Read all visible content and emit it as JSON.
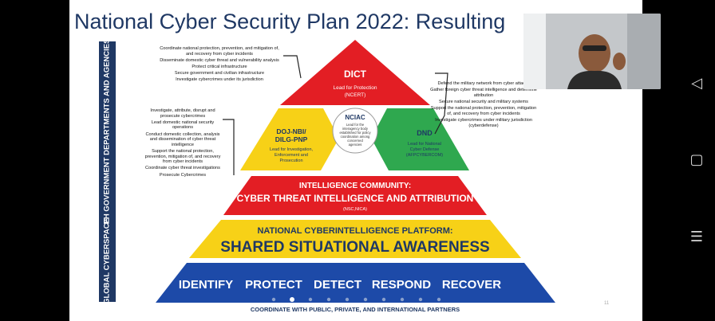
{
  "slide": {
    "title": "National Cyber Security Plan 2022: Resulting",
    "sidebar_top": "PH GOVERNMENT DEPARTMENTS AND AGENCIES",
    "sidebar_bottom": "GLOBAL CYBERSPACE",
    "dict": {
      "name": "DICT",
      "sub1": "Lead for Protection",
      "sub2": "(NCERT)"
    },
    "dojnbi": {
      "name1": "DOJ-NBI/",
      "name2": "DILG-PNP",
      "sub1": "Lead for Investigation,",
      "sub2": "Enforcement and",
      "sub3": "Prosecution"
    },
    "nciac": {
      "name": "NCIAC",
      "d1": "Lead for the",
      "d2": "interagency body",
      "d3": "established for policy",
      "d4": "coordination among",
      "d5": "concerned",
      "d6": "agencies"
    },
    "dnd": {
      "name": "DND",
      "sub1": "Lead for National",
      "sub2": "Cyber Defense",
      "sub3": "(AFPCYBERCOM)"
    },
    "intel": {
      "line1": "INTELLIGENCE COMMUNITY:",
      "line2": "CYBER THREAT INTELLIGENCE AND ATTRIBUTION",
      "line3": "(NSC,NICA)"
    },
    "platform": {
      "line1": "NATIONAL CYBERINTELLIGENCE PLATFORM:",
      "line2": "SHARED SITUATIONAL AWARENESS"
    },
    "functions": [
      "IDENTIFY",
      "PROTECT",
      "DETECT",
      "RESPOND",
      "RECOVER"
    ],
    "footer": "COORDINATE WITH PUBLIC, PRIVATE, AND INTERNATIONAL PARTNERS",
    "page_number": "11",
    "dict_list": [
      "Coordinate national protection, prevention, and mitigation of, and recovery from cyber incidents",
      "Disseminate domestic cyber threat and vulnerability analysis",
      "Protect critical infrastructure",
      "Secure government and civilian infrastructure",
      "Investigate cybercrimes under its jurisdiction"
    ],
    "dnd_list": [
      "Defend the military network from cyber attacks",
      "Gather foreign cyber threat intelligence and determine attribution",
      "Secure national security and military systems",
      "Support the national protection, prevention, mitigation of, and recovery from cyber incidents",
      "Investigate cybercrimes under military jurisdiction (cyberdefense)"
    ],
    "doj_list": [
      "Investigate, attribute, disrupt and prosecute cybercrimes",
      "Lead domestic national security operations",
      "Conduct domestic collection, analysis and dissemination of cyber threat intelligence",
      "Support the national protection, prevention, mitigation of, and recovery from cyber incidents",
      "Coordinate cyber threat investigations",
      "Prosecute Cybercrimes"
    ],
    "colors": {
      "red": "#e31e24",
      "yellow": "#f7d117",
      "green": "#2fa84f",
      "navy": "#1f3864",
      "blue": "#1d4aa8"
    }
  },
  "navigation": {
    "back_icon": "back-icon",
    "home_icon": "home-icon",
    "recent_icon": "recent-apps-icon"
  }
}
